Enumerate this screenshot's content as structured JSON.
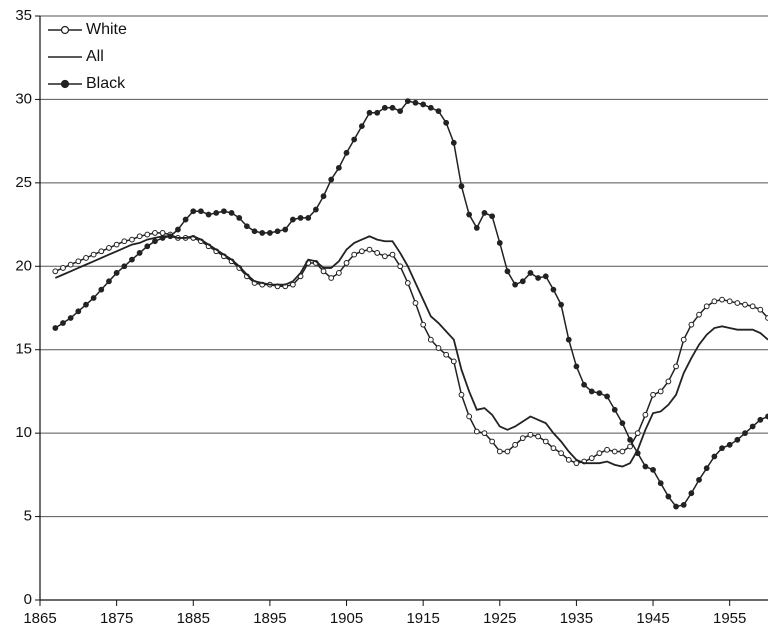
{
  "chart_data": {
    "type": "line",
    "x": [
      1867,
      1868,
      1869,
      1870,
      1871,
      1872,
      1873,
      1874,
      1875,
      1876,
      1877,
      1878,
      1879,
      1880,
      1881,
      1882,
      1883,
      1884,
      1885,
      1886,
      1887,
      1888,
      1889,
      1890,
      1891,
      1892,
      1893,
      1894,
      1895,
      1896,
      1897,
      1898,
      1899,
      1900,
      1901,
      1902,
      1903,
      1904,
      1905,
      1906,
      1907,
      1908,
      1909,
      1910,
      1911,
      1912,
      1913,
      1914,
      1915,
      1916,
      1917,
      1918,
      1919,
      1920,
      1921,
      1922,
      1923,
      1924,
      1925,
      1926,
      1927,
      1928,
      1929,
      1930,
      1931,
      1932,
      1933,
      1934,
      1935,
      1936,
      1937,
      1938,
      1939,
      1940,
      1941,
      1942,
      1943,
      1944,
      1945,
      1946,
      1947,
      1948,
      1949,
      1950,
      1951,
      1952,
      1953,
      1954,
      1955,
      1956,
      1957,
      1958,
      1959,
      1960
    ],
    "series": [
      {
        "name": "White",
        "color": "#222222",
        "marker": "open",
        "values": [
          19.7,
          19.9,
          20.1,
          20.3,
          20.5,
          20.7,
          20.9,
          21.1,
          21.3,
          21.5,
          21.6,
          21.8,
          21.9,
          22.0,
          22.0,
          21.9,
          21.7,
          21.7,
          21.7,
          21.5,
          21.2,
          20.9,
          20.6,
          20.3,
          19.9,
          19.4,
          19.0,
          18.9,
          18.9,
          18.8,
          18.8,
          18.9,
          19.4,
          20.2,
          20.2,
          19.7,
          19.3,
          19.6,
          20.2,
          20.7,
          20.9,
          21.0,
          20.8,
          20.6,
          20.7,
          20.0,
          19.0,
          17.8,
          16.5,
          15.6,
          15.1,
          14.7,
          14.3,
          12.3,
          11.0,
          10.1,
          10.0,
          9.5,
          8.9,
          8.9,
          9.3,
          9.7,
          9.9,
          9.8,
          9.5,
          9.1,
          8.8,
          8.4,
          8.2,
          8.3,
          8.5,
          8.8,
          9.0,
          8.9,
          8.9,
          9.2,
          10.0,
          11.1,
          12.3,
          12.5,
          13.1,
          14.0,
          15.6,
          16.5,
          17.1,
          17.6,
          17.9,
          18.0,
          17.9,
          17.8,
          17.7,
          17.6,
          17.4,
          16.9
        ]
      },
      {
        "name": "All",
        "color": "#222222",
        "marker": "none",
        "values": [
          19.3,
          19.5,
          19.7,
          19.9,
          20.1,
          20.3,
          20.5,
          20.7,
          20.9,
          21.1,
          21.3,
          21.4,
          21.6,
          21.7,
          21.8,
          21.8,
          21.7,
          21.7,
          21.8,
          21.6,
          21.3,
          21.0,
          20.7,
          20.4,
          20.0,
          19.5,
          19.1,
          19.0,
          18.9,
          18.9,
          18.9,
          19.1,
          19.6,
          20.4,
          20.3,
          19.9,
          19.9,
          20.3,
          21.0,
          21.4,
          21.6,
          21.8,
          21.6,
          21.5,
          21.5,
          20.8,
          20.0,
          19.0,
          18.0,
          17.0,
          16.6,
          16.1,
          15.6,
          13.8,
          12.5,
          11.4,
          11.5,
          11.1,
          10.4,
          10.2,
          10.4,
          10.7,
          11.0,
          10.8,
          10.6,
          10.0,
          9.5,
          8.9,
          8.4,
          8.2,
          8.2,
          8.2,
          8.3,
          8.1,
          8.0,
          8.2,
          9.0,
          10.2,
          11.2,
          11.3,
          11.7,
          12.3,
          13.6,
          14.5,
          15.3,
          15.9,
          16.3,
          16.4,
          16.3,
          16.2,
          16.2,
          16.2,
          16.0,
          15.6
        ]
      },
      {
        "name": "Black",
        "color": "#222222",
        "marker": "filled",
        "values": [
          16.3,
          16.6,
          16.9,
          17.3,
          17.7,
          18.1,
          18.6,
          19.1,
          19.6,
          20.0,
          20.4,
          20.8,
          21.2,
          21.5,
          21.7,
          21.8,
          22.2,
          22.8,
          23.3,
          23.3,
          23.1,
          23.2,
          23.3,
          23.2,
          22.9,
          22.4,
          22.1,
          22.0,
          22.0,
          22.1,
          22.2,
          22.8,
          22.9,
          22.9,
          23.4,
          24.2,
          25.2,
          25.9,
          26.8,
          27.6,
          28.4,
          29.2,
          29.2,
          29.5,
          29.5,
          29.3,
          29.9,
          29.8,
          29.7,
          29.5,
          29.3,
          28.6,
          27.4,
          24.8,
          23.1,
          22.3,
          23.2,
          23.0,
          21.4,
          19.7,
          18.9,
          19.1,
          19.6,
          19.3,
          19.4,
          18.6,
          17.7,
          15.6,
          14.0,
          12.9,
          12.5,
          12.4,
          12.2,
          11.4,
          10.6,
          9.6,
          8.8,
          8.0,
          7.8,
          7.0,
          6.2,
          5.6,
          5.7,
          6.4,
          7.2,
          7.9,
          8.6,
          9.1,
          9.3,
          9.6,
          10.0,
          10.4,
          10.8,
          11.0
        ]
      }
    ],
    "xlim": [
      1865,
      1960
    ],
    "xticks": [
      1865,
      1875,
      1885,
      1895,
      1905,
      1915,
      1925,
      1935,
      1945,
      1955
    ],
    "ylim": [
      0,
      35
    ],
    "yticks": [
      0,
      5,
      10,
      15,
      20,
      25,
      30,
      35
    ],
    "grid": true,
    "legend": "upper left"
  }
}
